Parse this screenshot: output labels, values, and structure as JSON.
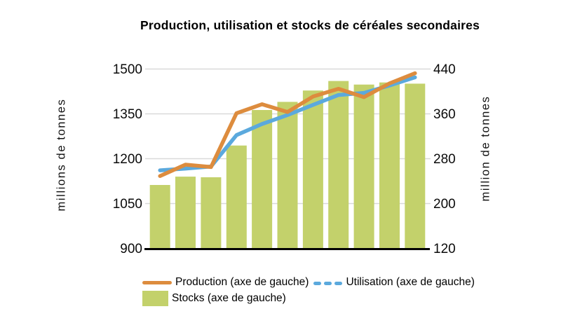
{
  "title": "Production, utilisation et stocks de céréales secondaires",
  "left_axis": {
    "label": "millions de tonnes",
    "ticks": [
      "1500",
      "1350",
      "1200",
      "1050",
      "900"
    ]
  },
  "right_axis": {
    "label": "million de tonnes",
    "ticks": [
      "440",
      "360",
      "280",
      "200",
      "120"
    ]
  },
  "legend": [
    {
      "label": "Production (axe de gauche)",
      "swatch": "line-swatch",
      "color": "#DD8C3E"
    },
    {
      "label": "Utilisation (axe de gauche)",
      "swatch": "dashes-swatch",
      "color": "#5BA9DD"
    },
    {
      "label": "Stocks (axe de gauche)",
      "swatch": "rect-swatch",
      "color": "#C3D16B"
    }
  ],
  "colors": {
    "production_line": "#DD8C3E",
    "utilisation_line": "#5BA9DD",
    "stocks_bar": "#C3D16B",
    "gridline": "#D9D9D9",
    "axis_line": "#000000"
  },
  "chart_data": {
    "type": "bar",
    "subtype": "combo bar+line, dual value axes, no x-axis category labels shown",
    "title": "Production, utilisation et stocks de céréales secondaires",
    "ylabel_left": "millions de tonnes",
    "ylabel_right": "million de tonnes",
    "ylim_left": [
      900,
      1500
    ],
    "ylim_right": [
      120,
      440
    ],
    "yticks_left": [
      900,
      1050,
      1200,
      1350,
      1500
    ],
    "yticks_right": [
      120,
      200,
      280,
      360,
      440
    ],
    "grid": true,
    "legend_position": "bottom",
    "n_points": 11,
    "series": [
      {
        "name": "Stocks (axe de gauche)",
        "type": "bar",
        "color": "#C3D16B",
        "values": [
          1112,
          1140,
          1138,
          1244,
          1363,
          1390,
          1428,
          1460,
          1448,
          1455,
          1451
        ]
      },
      {
        "name": "Utilisation (axe de gauche)",
        "type": "line",
        "style": "solid",
        "color": "#5BA9DD",
        "values": [
          1161,
          1167,
          1174,
          1279,
          1316,
          1346,
          1380,
          1413,
          1420,
          1445,
          1472
        ]
      },
      {
        "name": "Production (axe de gauche)",
        "type": "line",
        "style": "solid",
        "color": "#DD8C3E",
        "values": [
          1142,
          1180,
          1172,
          1352,
          1382,
          1356,
          1408,
          1434,
          1406,
          1452,
          1486
        ]
      }
    ]
  }
}
